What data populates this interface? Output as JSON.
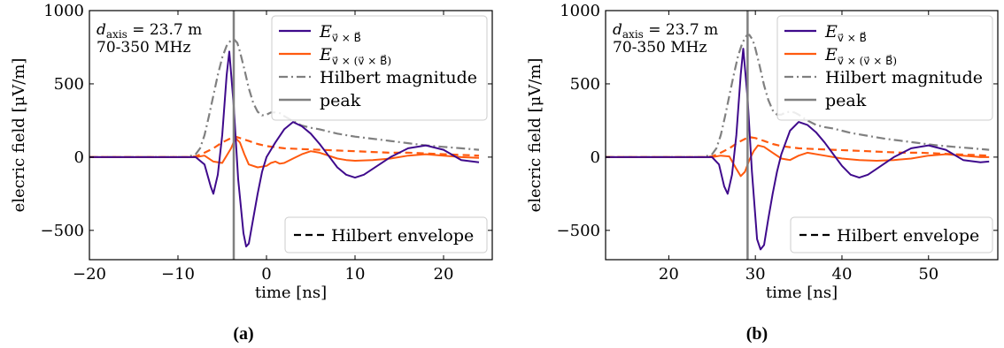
{
  "colors": {
    "vxB": "#3f0a8c",
    "vxvxB": "#ff5a0f",
    "hilbert": "#808080",
    "peak": "#808080",
    "frame": "#000000"
  },
  "chart_data": [
    {
      "panel": "(a)",
      "type": "line",
      "xlabel": "time [ns]",
      "ylabel": "elecric field [μV/m]",
      "xlim": [
        -20,
        25.5
      ],
      "ylim": [
        -700,
        1000
      ],
      "xticks": [
        -20,
        -10,
        0,
        10,
        20
      ],
      "xtick_labels": [
        "−20",
        "−10",
        "0",
        "10",
        "20"
      ],
      "yticks": [
        -500,
        0,
        500,
        1000
      ],
      "ytick_labels": [
        "−500",
        "0",
        "500",
        "1000"
      ],
      "grid": false,
      "annotation": [
        "d_axis = 23.7 m",
        "70-350 MHz"
      ],
      "peak_x": -3.7,
      "legend_top": [
        "E_v×B",
        "E_v×(v×B)",
        "Hilbert magnitude",
        "peak"
      ],
      "legend_bottom": [
        "Hilbert envelope"
      ],
      "series": [
        {
          "name": "E_v×B",
          "style": "solid",
          "color": "vxB",
          "x": [
            -20,
            -8,
            -7,
            -6.3,
            -6,
            -5.5,
            -5,
            -4.5,
            -4.2,
            -3.7,
            -3.2,
            -2.6,
            -2.3,
            -2,
            -1.5,
            -1,
            -0.5,
            0,
            0.5,
            1,
            2,
            3,
            4,
            5,
            6,
            7,
            8,
            9,
            10,
            11,
            12,
            14,
            16,
            18,
            20,
            22,
            24
          ],
          "y": [
            0,
            0,
            -50,
            -200,
            -250,
            -120,
            150,
            560,
            720,
            350,
            -150,
            -520,
            -610,
            -590,
            -420,
            -250,
            -100,
            0,
            50,
            100,
            190,
            240,
            210,
            160,
            90,
            10,
            -70,
            -120,
            -140,
            -120,
            -80,
            0,
            60,
            80,
            50,
            -20,
            -35
          ]
        },
        {
          "name": "E_v×(v×B)",
          "style": "solid",
          "color": "vxvxB",
          "x": [
            -20,
            -9,
            -8,
            -7,
            -6,
            -5,
            -4,
            -3.5,
            -3,
            -2.5,
            -2,
            -1,
            0,
            0.5,
            1,
            1.5,
            2,
            3,
            4,
            5,
            6,
            7,
            8,
            9,
            10,
            12,
            14,
            16,
            18,
            20,
            22,
            24
          ],
          "y": [
            0,
            0,
            0,
            10,
            -30,
            -40,
            60,
            130,
            100,
            20,
            -50,
            -70,
            -60,
            -40,
            -30,
            -45,
            -40,
            -10,
            20,
            40,
            30,
            10,
            -10,
            -20,
            -25,
            -20,
            -10,
            10,
            20,
            10,
            0,
            -5
          ]
        },
        {
          "name": "Hilbert envelope",
          "style": "dashed",
          "color": "vxvxB",
          "x": [
            -20,
            -9,
            -8,
            -7,
            -6,
            -5,
            -4,
            -3.5,
            -3,
            -2,
            -1,
            0,
            2,
            4,
            6,
            8,
            10,
            12,
            14,
            16,
            18,
            20,
            22,
            24
          ],
          "y": [
            0,
            0,
            5,
            30,
            60,
            100,
            130,
            140,
            130,
            110,
            90,
            75,
            60,
            55,
            50,
            45,
            40,
            35,
            30,
            30,
            25,
            20,
            15,
            10
          ]
        },
        {
          "name": "Hilbert magnitude",
          "style": "dashdot",
          "color": "hilbert",
          "x": [
            -20,
            -9,
            -8,
            -7.5,
            -7,
            -6.5,
            -6,
            -5.5,
            -5,
            -4.5,
            -4,
            -3.7,
            -3.3,
            -3,
            -2.5,
            -2,
            -1.5,
            -1,
            -0.5,
            0,
            0.5,
            1,
            1.5,
            2,
            3,
            4,
            5,
            6,
            7,
            8,
            10,
            12,
            14,
            16,
            18,
            20,
            22,
            24
          ],
          "y": [
            0,
            0,
            20,
            60,
            150,
            280,
            420,
            560,
            680,
            760,
            800,
            805,
            780,
            720,
            600,
            470,
            370,
            310,
            285,
            290,
            305,
            305,
            300,
            280,
            245,
            215,
            200,
            190,
            175,
            160,
            140,
            125,
            110,
            95,
            80,
            70,
            60,
            50
          ]
        }
      ]
    },
    {
      "panel": "(b)",
      "type": "line",
      "xlabel": "time [ns]",
      "ylabel": "elecric field [μV/m]",
      "xlim": [
        12.7,
        58
      ],
      "ylim": [
        -700,
        1000
      ],
      "xticks": [
        20,
        30,
        40,
        50
      ],
      "xtick_labels": [
        "20",
        "30",
        "40",
        "50"
      ],
      "yticks": [
        -500,
        0,
        500,
        1000
      ],
      "ytick_labels": [
        "−500",
        "0",
        "500",
        "1000"
      ],
      "grid": false,
      "annotation": [
        "d_axis = 23.7 m",
        "70-350 MHz"
      ],
      "peak_x": 29.1,
      "legend_top": [
        "E_v×B",
        "E_v×(v×B)",
        "Hilbert magnitude",
        "peak"
      ],
      "legend_bottom": [
        "Hilbert envelope"
      ],
      "series": [
        {
          "name": "E_v×B",
          "style": "solid",
          "color": "vxB",
          "x": [
            12.7,
            25,
            25.8,
            26.4,
            26.8,
            27.3,
            27.8,
            28.3,
            28.6,
            29.1,
            29.6,
            30.2,
            30.6,
            31,
            31.5,
            32,
            32.5,
            33,
            34,
            35,
            36,
            37,
            38,
            39,
            40,
            41,
            42,
            43,
            44,
            46,
            48,
            50,
            52,
            54,
            56,
            57
          ],
          "y": [
            0,
            0,
            -50,
            -200,
            -250,
            -120,
            150,
            560,
            740,
            400,
            -100,
            -560,
            -630,
            -600,
            -420,
            -250,
            -100,
            20,
            180,
            240,
            220,
            170,
            100,
            20,
            -60,
            -120,
            -140,
            -120,
            -80,
            0,
            60,
            80,
            50,
            -20,
            -35,
            -30
          ]
        },
        {
          "name": "E_v×(v×B)",
          "style": "solid",
          "color": "vxvxB",
          "x": [
            12.7,
            24,
            25,
            26,
            27,
            27.8,
            28.3,
            28.8,
            29.3,
            29.8,
            30.3,
            31,
            32,
            33,
            34,
            35,
            36,
            38,
            40,
            42,
            44,
            46,
            48,
            50,
            52,
            54,
            56,
            57
          ],
          "y": [
            0,
            0,
            0,
            10,
            5,
            -80,
            -130,
            -100,
            -20,
            40,
            80,
            70,
            30,
            -10,
            -20,
            10,
            30,
            10,
            -10,
            -20,
            -25,
            -20,
            -10,
            10,
            20,
            10,
            0,
            0
          ]
        },
        {
          "name": "Hilbert envelope",
          "style": "dashed",
          "color": "vxvxB",
          "x": [
            12.7,
            24,
            25,
            26,
            27,
            28,
            29,
            29.5,
            30,
            31,
            32,
            33,
            35,
            37,
            39,
            41,
            43,
            45,
            47,
            49,
            51,
            53,
            55,
            57
          ],
          "y": [
            0,
            0,
            5,
            30,
            60,
            100,
            130,
            135,
            130,
            110,
            90,
            75,
            60,
            55,
            50,
            45,
            40,
            35,
            30,
            30,
            25,
            20,
            15,
            10
          ]
        },
        {
          "name": "Hilbert magnitude",
          "style": "dashdot",
          "color": "hilbert",
          "x": [
            12.7,
            24,
            25,
            25.5,
            26,
            26.5,
            27,
            27.5,
            28,
            28.5,
            29,
            29.3,
            29.7,
            30,
            30.5,
            31,
            31.5,
            32,
            32.5,
            33,
            33.5,
            34,
            34.5,
            35,
            36,
            37,
            38,
            39,
            40,
            41,
            43,
            45,
            47,
            49,
            51,
            53,
            55,
            57
          ],
          "y": [
            0,
            0,
            20,
            60,
            150,
            280,
            420,
            560,
            690,
            780,
            830,
            835,
            800,
            740,
            620,
            490,
            390,
            320,
            290,
            290,
            305,
            310,
            305,
            290,
            250,
            220,
            205,
            195,
            180,
            165,
            145,
            125,
            110,
            95,
            80,
            70,
            60,
            50
          ]
        }
      ]
    }
  ],
  "captions": [
    "(a)",
    "(b)"
  ]
}
